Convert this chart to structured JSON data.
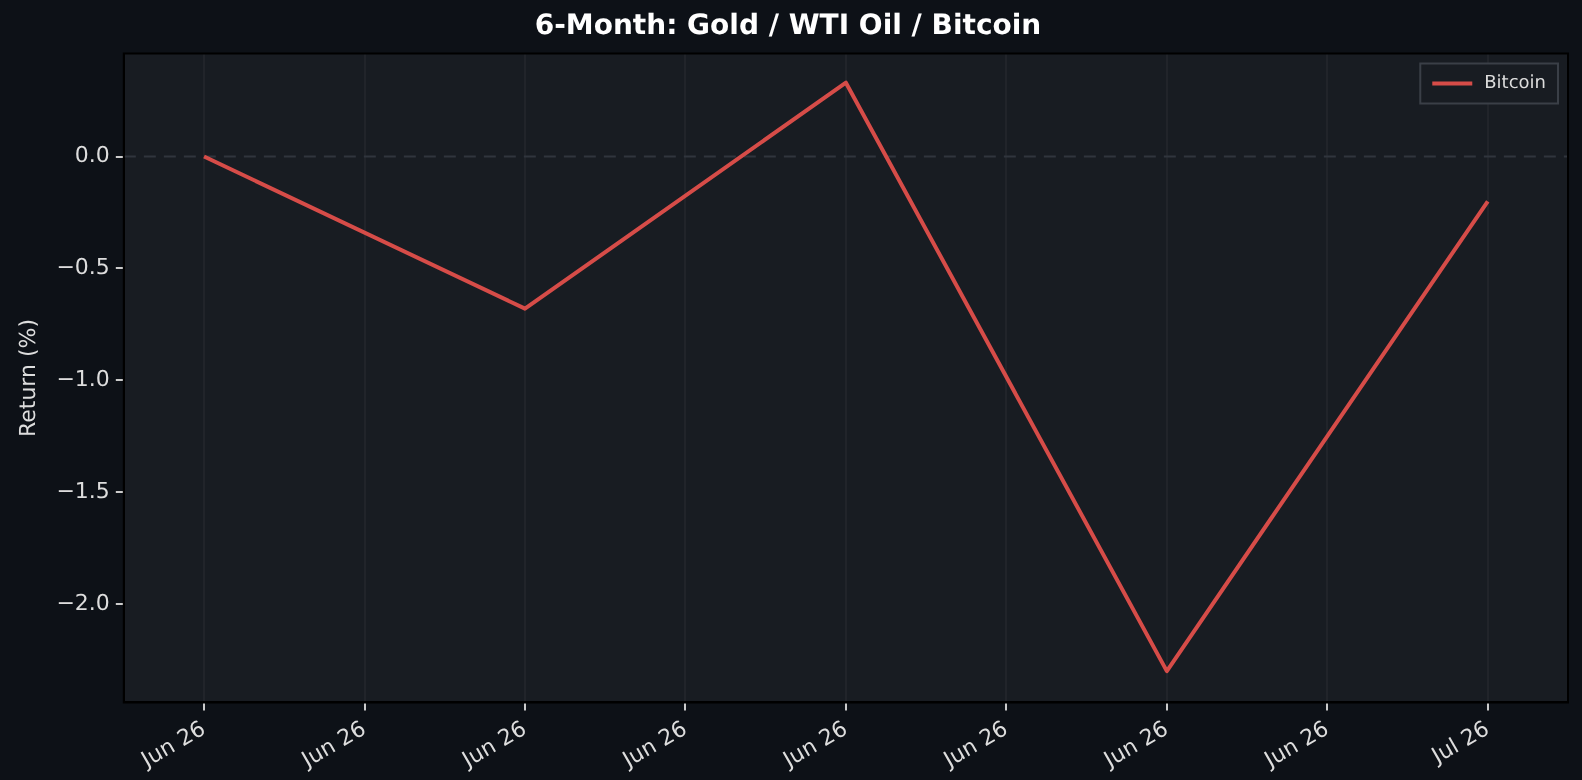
{
  "chart_data": {
    "type": "line",
    "title": "6-Month: Gold / WTI Oil / Bitcoin",
    "ylabel": "Return (%)",
    "categories": [
      "Jun 26",
      "Jun 26",
      "Jun 26",
      "Jun 26",
      "Jun 26",
      "Jun 26",
      "Jun 26",
      "Jun 26",
      "Jul 26"
    ],
    "series": [
      {
        "name": "Bitcoin",
        "color": "#d64c48",
        "values": [
          0,
          null,
          -0.68,
          null,
          0.33,
          null,
          -2.3,
          null,
          -0.2
        ]
      }
    ],
    "ylim": [
      -2.44,
      0.46
    ],
    "yticks": [
      {
        "value": 0,
        "label": "0.0"
      },
      {
        "value": -0.5,
        "label": "−0.5"
      },
      {
        "value": -1,
        "label": "−1.0"
      },
      {
        "value": -1.5,
        "label": "−1.5"
      },
      {
        "value": -2,
        "label": "−2.0"
      }
    ],
    "ref_lines": [
      {
        "axis": "y",
        "value": 0,
        "color": "#30353d",
        "line_style": "dashed"
      }
    ],
    "grid": "x",
    "legend": "top right",
    "marker": "none",
    "line_style": "solid"
  }
}
